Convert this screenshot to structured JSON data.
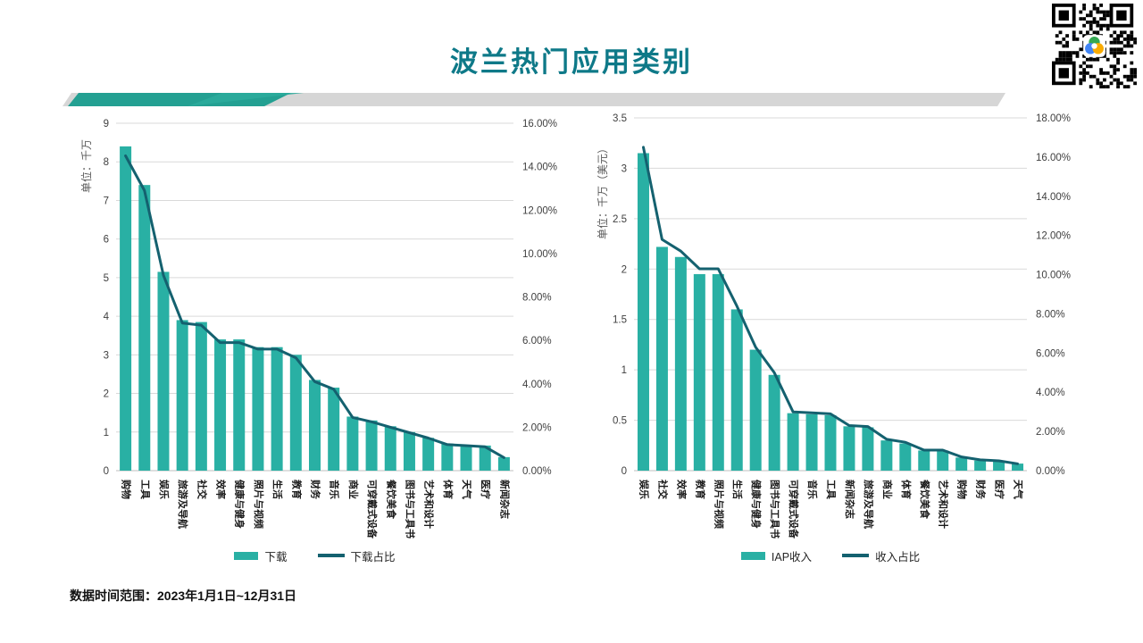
{
  "page": {
    "title": "波兰热门应用类别",
    "footer": "数据时间范围：2023年1月1日~12月31日"
  },
  "colors": {
    "bar": "#29b0a4",
    "line": "#14616f",
    "title_teal": "#0e7988",
    "grid": "#d9d9d9",
    "axis": "#bfbfbf",
    "tick_text": "#404040",
    "category_text": "#1a1a1a"
  },
  "chart_data": [
    {
      "type": "bar+line",
      "name": "downloads-by-category",
      "y_left": {
        "label": "单位：千万",
        "min": 0,
        "max": 9,
        "step": 1,
        "tick_labels": [
          "0",
          "1",
          "2",
          "3",
          "4",
          "5",
          "6",
          "7",
          "8",
          "9"
        ]
      },
      "y_right": {
        "min": 0,
        "max": 16,
        "step": 2,
        "format": "percent",
        "tick_labels": [
          "0.00%",
          "2.00%",
          "4.00%",
          "6.00%",
          "8.00%",
          "10.00%",
          "12.00%",
          "14.00%",
          "16.00%"
        ]
      },
      "categories": [
        "购物",
        "工具",
        "娱乐",
        "旅游及导航",
        "社交",
        "效率",
        "健康与健身",
        "照片与视频",
        "生活",
        "教育",
        "财务",
        "音乐",
        "商业",
        "可穿戴式设备",
        "餐饮美食",
        "图书与工具书",
        "艺术和设计",
        "体育",
        "天气",
        "医疗",
        "新闻杂志"
      ],
      "series": [
        {
          "name": "下载",
          "type": "bar",
          "axis": "left",
          "values": [
            8.4,
            7.4,
            5.15,
            3.9,
            3.85,
            3.4,
            3.4,
            3.2,
            3.2,
            3.0,
            2.35,
            2.15,
            1.4,
            1.3,
            1.15,
            1.0,
            0.85,
            0.7,
            0.65,
            0.65,
            0.35
          ]
        },
        {
          "name": "下载占比",
          "type": "line",
          "axis": "right",
          "values": [
            14.5,
            12.9,
            9.0,
            6.8,
            6.7,
            5.9,
            5.9,
            5.6,
            5.6,
            5.2,
            4.1,
            3.75,
            2.45,
            2.25,
            2.0,
            1.75,
            1.5,
            1.2,
            1.15,
            1.1,
            0.6
          ]
        }
      ],
      "legend_position": "bottom",
      "grid": true
    },
    {
      "type": "bar+line",
      "name": "iap-revenue-by-category",
      "y_left": {
        "label": "单位：千万（美元）",
        "min": 0,
        "max": 3.5,
        "step": 0.5,
        "tick_labels": [
          "0",
          "0.5",
          "1",
          "1.5",
          "2",
          "2.5",
          "3",
          "3.5"
        ]
      },
      "y_right": {
        "min": 0,
        "max": 18,
        "step": 2,
        "format": "percent",
        "tick_labels": [
          "0.00%",
          "2.00%",
          "4.00%",
          "6.00%",
          "8.00%",
          "10.00%",
          "12.00%",
          "14.00%",
          "16.00%",
          "18.00%"
        ]
      },
      "categories": [
        "娱乐",
        "社交",
        "效率",
        "教育",
        "照片与视频",
        "生活",
        "健康与健身",
        "图书与工具书",
        "可穿戴式设备",
        "音乐",
        "工具",
        "新闻杂志",
        "旅游及导航",
        "商业",
        "体育",
        "餐饮美食",
        "艺术和设计",
        "购物",
        "财务",
        "医疗",
        "天气"
      ],
      "series": [
        {
          "name": "IAP收入",
          "type": "bar",
          "axis": "left",
          "values": [
            3.15,
            2.22,
            2.12,
            1.95,
            1.95,
            1.6,
            1.2,
            0.95,
            0.57,
            0.56,
            0.55,
            0.44,
            0.43,
            0.3,
            0.27,
            0.2,
            0.2,
            0.13,
            0.1,
            0.1,
            0.07
          ]
        },
        {
          "name": "收入占比",
          "type": "line",
          "axis": "right",
          "values": [
            16.5,
            11.8,
            11.2,
            10.3,
            10.3,
            8.4,
            6.3,
            5.0,
            3.0,
            2.95,
            2.9,
            2.3,
            2.25,
            1.6,
            1.45,
            1.05,
            1.05,
            0.7,
            0.55,
            0.5,
            0.35
          ]
        }
      ],
      "legend_position": "bottom",
      "grid": true
    }
  ]
}
